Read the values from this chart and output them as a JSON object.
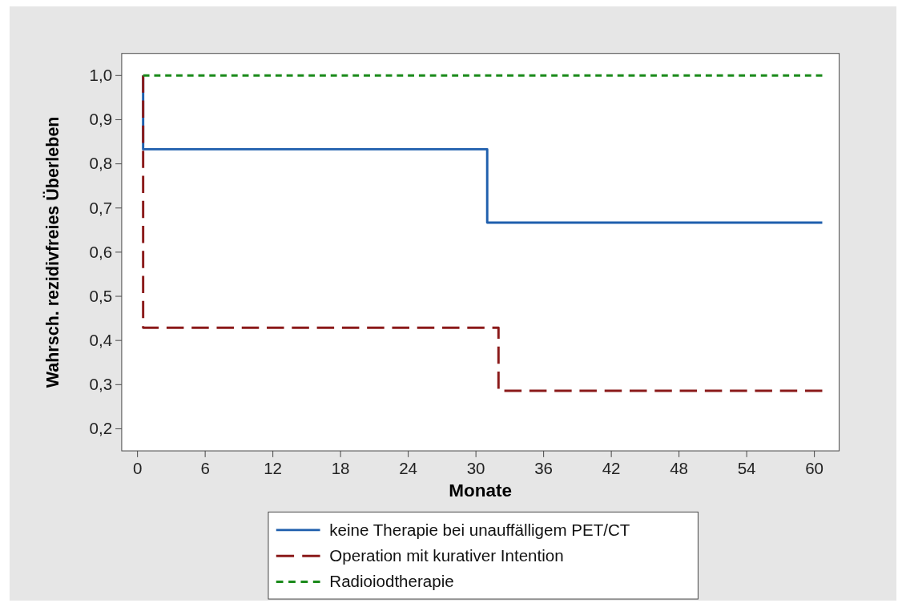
{
  "chart_data": {
    "type": "step",
    "xlabel": "Monate",
    "ylabel": "Wahrsch. rezidivfreies Überleben",
    "xlim": [
      -1.4,
      62.2
    ],
    "ylim": [
      0.15,
      1.05
    ],
    "xticks": [
      0,
      6,
      12,
      18,
      24,
      30,
      36,
      42,
      48,
      54,
      60
    ],
    "yticks": [
      {
        "value": 0.2,
        "label": "0,2"
      },
      {
        "value": 0.3,
        "label": "0,3"
      },
      {
        "value": 0.4,
        "label": "0,4"
      },
      {
        "value": 0.5,
        "label": "0,5"
      },
      {
        "value": 0.6,
        "label": "0,6"
      },
      {
        "value": 0.7,
        "label": "0,7"
      },
      {
        "value": 0.8,
        "label": "0,8"
      },
      {
        "value": 0.9,
        "label": "0,9"
      },
      {
        "value": 1.0,
        "label": "1,0"
      }
    ],
    "grid": false,
    "legend": "bottom",
    "series": [
      {
        "name": "keine Therapie bei unauffälligem PET/CT",
        "color": "#1f5fad",
        "line_style": "solid",
        "x": [
          0.5,
          0.5,
          31,
          60.7
        ],
        "values": [
          1,
          0.833,
          0.667,
          0.667
        ]
      },
      {
        "name": "Operation mit kurativer Intention",
        "color": "#8b1a1a",
        "line_style": "dashed",
        "x": [
          0.5,
          0.5,
          32,
          60.7
        ],
        "values": [
          1,
          0.429,
          0.286,
          0.286
        ]
      },
      {
        "name": "Radioiodtherapie",
        "color": "#1a8a1a",
        "line_style": "dotted",
        "x": [
          0.5,
          60.7
        ],
        "values": [
          1,
          1
        ]
      }
    ]
  }
}
